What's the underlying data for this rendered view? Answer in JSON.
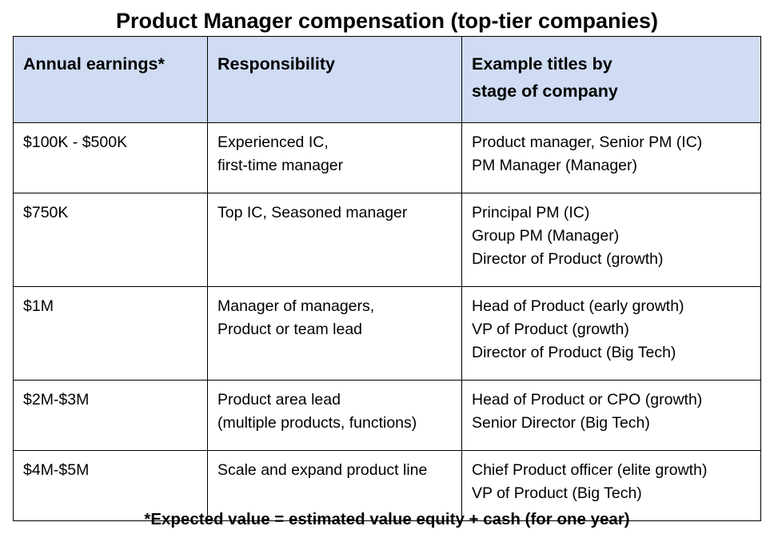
{
  "title": "Product Manager compensation (top-tier companies)",
  "table": {
    "headers": [
      [
        "Annual earnings*"
      ],
      [
        "Responsibility"
      ],
      [
        "Example titles by",
        "stage of company"
      ]
    ],
    "rows": [
      {
        "earnings": [
          "$100K - $500K"
        ],
        "responsibility": [
          "Experienced IC,",
          "first-time manager"
        ],
        "titles": [
          "Product manager, Senior PM (IC)",
          "PM Manager (Manager)"
        ]
      },
      {
        "earnings": [
          "$750K"
        ],
        "responsibility": [
          "Top IC, Seasoned manager"
        ],
        "titles": [
          "Principal PM (IC)",
          "Group PM (Manager)",
          "Director of Product (growth)"
        ]
      },
      {
        "earnings": [
          "$1M"
        ],
        "responsibility": [
          "Manager of managers,",
          "Product or team lead"
        ],
        "titles": [
          "Head of Product (early growth)",
          "VP of Product (growth)",
          "Director of Product (Big Tech)"
        ]
      },
      {
        "earnings": [
          "$2M-$3M"
        ],
        "responsibility": [
          "Product area lead",
          "(multiple products, functions)"
        ],
        "titles": [
          "Head of Product or CPO (growth)",
          "Senior Director (Big Tech)"
        ]
      },
      {
        "earnings": [
          "$4M-$5M"
        ],
        "responsibility": [
          "Scale and expand product line"
        ],
        "titles": [
          "Chief Product officer (elite growth)",
          "VP of Product (Big Tech)"
        ]
      }
    ]
  },
  "footnote": "*Expected value = estimated value equity + cash (for one year)",
  "colors": {
    "header_background": "#cfdcf3",
    "border": "#000000",
    "text": "#000000"
  }
}
